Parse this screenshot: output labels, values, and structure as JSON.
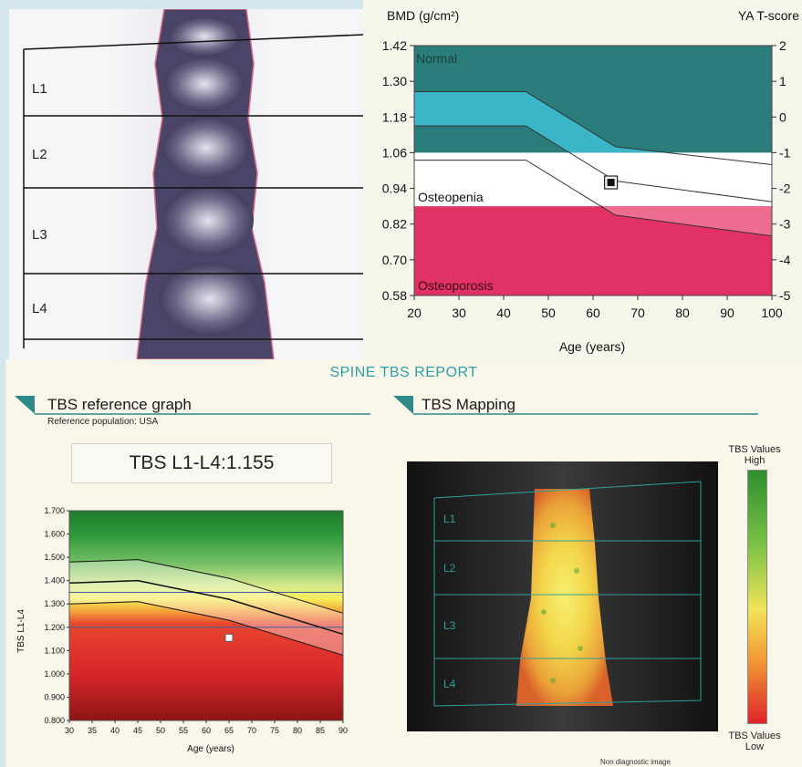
{
  "spine_image": {
    "vertebra_labels": [
      "L1",
      "L2",
      "L3",
      "L4"
    ]
  },
  "bmd_chart": {
    "header_left": "BMD (g/cm²)",
    "header_right": "YA T-score",
    "zones": {
      "normal": "Normal",
      "osteopenia": "Osteopenia",
      "osteoporosis": "Osteoporosis"
    },
    "xlabel": "Age (years)",
    "colors": {
      "normal": "#2a7d7a",
      "reference_band": "#3bb6c8",
      "osteoporosis": "#e23264",
      "osteopenia": "#ffffff"
    }
  },
  "report": {
    "title": "SPINE TBS  REPORT",
    "left_section_title": "TBS reference graph",
    "reference_population": "Reference population: USA",
    "tbs_value_text": "TBS L1-L4:1.155",
    "right_section_title": "TBS Mapping",
    "legend_high": "TBS Values\nHigh",
    "legend_low": "TBS Values\nLow",
    "mapping_labels": [
      "L1",
      "L2",
      "L3",
      "L4"
    ],
    "non_diagnostic": "Non diagnostic image"
  },
  "chart_data": [
    {
      "type": "line",
      "title": "",
      "xlabel": "Age (years)",
      "ylabel": "BMD (g/cm²)",
      "y2label": "YA T-score",
      "xlim": [
        20,
        100
      ],
      "ylim": [
        0.58,
        1.42
      ],
      "xticks": [
        20,
        30,
        40,
        50,
        60,
        70,
        80,
        90,
        100
      ],
      "yticks": [
        0.58,
        0.7,
        0.82,
        0.94,
        1.06,
        1.18,
        1.3,
        1.42
      ],
      "y2ticks": [
        -5,
        -4,
        -3,
        -2,
        -1,
        0,
        1,
        2
      ],
      "zone_thresholds": {
        "normal_min": 1.06,
        "osteoporosis_max": 0.88
      },
      "series": [
        {
          "values_x": [
            20,
            45,
            65,
            100
          ],
          "values_y": [
            1.265,
            1.265,
            1.08,
            1.02
          ]
        },
        {
          "values_x": [
            20,
            45,
            65,
            100
          ],
          "values_y": [
            1.15,
            1.15,
            0.965,
            0.895
          ]
        },
        {
          "values_x": [
            20,
            45,
            65,
            100
          ],
          "values_y": [
            1.035,
            1.035,
            0.85,
            0.78
          ]
        }
      ],
      "patient_point": {
        "x": 64,
        "y": 0.96
      }
    },
    {
      "type": "line",
      "title": "",
      "xlabel": "Age (years)",
      "ylabel": "TBS L1-L4",
      "xlim": [
        30,
        90
      ],
      "ylim": [
        0.8,
        1.7
      ],
      "xticks": [
        30,
        35,
        40,
        45,
        50,
        55,
        60,
        65,
        70,
        75,
        80,
        85,
        90
      ],
      "yticks": [
        0.8,
        0.9,
        1.0,
        1.1,
        1.2,
        1.3,
        1.4,
        1.5,
        1.6,
        1.7
      ],
      "horizontal_lines": [
        1.35,
        1.2
      ],
      "series": [
        {
          "values_x": [
            30,
            45,
            65,
            90
          ],
          "values_y": [
            1.48,
            1.49,
            1.41,
            1.26
          ]
        },
        {
          "values_x": [
            30,
            45,
            65,
            90
          ],
          "values_y": [
            1.39,
            1.4,
            1.32,
            1.17
          ]
        },
        {
          "values_x": [
            30,
            45,
            65,
            90
          ],
          "values_y": [
            1.3,
            1.31,
            1.23,
            1.08
          ]
        }
      ],
      "patient_point": {
        "x": 65,
        "y": 1.155
      }
    }
  ]
}
